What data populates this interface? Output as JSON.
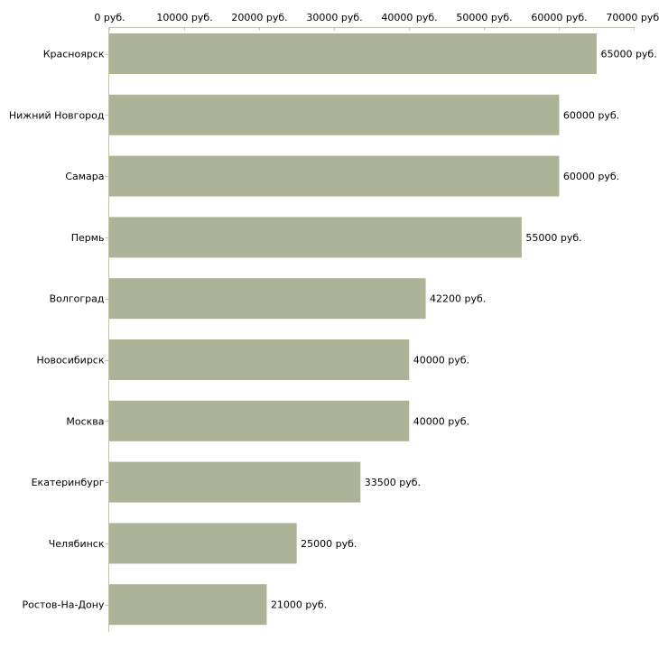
{
  "chart_data": {
    "type": "bar",
    "orientation": "horizontal",
    "title": "",
    "xlabel": "",
    "ylabel": "",
    "xlim": [
      0,
      70000
    ],
    "unit_suffix": " руб.",
    "x_ticks": [
      0,
      10000,
      20000,
      30000,
      40000,
      50000,
      60000,
      70000
    ],
    "x_tick_labels": [
      "0 руб.",
      "10000 руб.",
      "20000 руб.",
      "30000 руб.",
      "40000 руб.",
      "50000 руб.",
      "60000 руб.",
      "70000 руб."
    ],
    "categories": [
      "Красноярск",
      "Нижний Новгород",
      "Самара",
      "Пермь",
      "Волгоград",
      "Новосибирск",
      "Москва",
      "Екатеринбург",
      "Челябинск",
      "Ростов-На-Дону"
    ],
    "values": [
      65000,
      60000,
      60000,
      55000,
      42200,
      40000,
      40000,
      33500,
      25000,
      21000
    ],
    "data_labels": [
      "65000 руб.",
      "60000 руб.",
      "60000 руб.",
      "55000 руб.",
      "42200 руб.",
      "40000 руб.",
      "40000 руб.",
      "33500 руб.",
      "25000 руб.",
      "21000 руб."
    ],
    "grid": false,
    "legend": "none",
    "bar_color": "#adb396",
    "axis_color": "#c4c4ac"
  }
}
